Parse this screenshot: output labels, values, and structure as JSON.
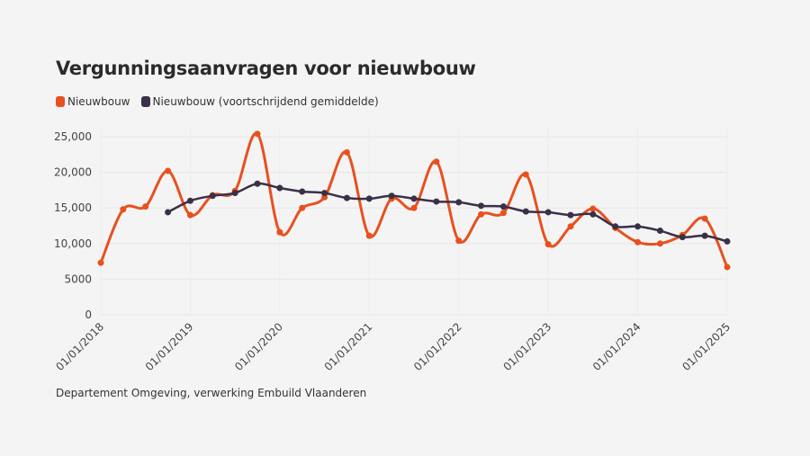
{
  "chart_data": {
    "type": "line",
    "title": "Vergunningsaanvragen voor nieuwbouw",
    "source": "Departement Omgeving, verwerking Embuild Vlaanderen",
    "legend_position": "top-left",
    "grid": true,
    "ylim": [
      0,
      25000
    ],
    "y_ticks": [
      "0",
      "5000",
      "10,000",
      "15,000",
      "20,000",
      "25,000"
    ],
    "y_tick_values": [
      0,
      5000,
      10000,
      15000,
      20000,
      25000
    ],
    "x_ticks": [
      "01/01/2018",
      "01/01/2019",
      "01/01/2020",
      "01/01/2021",
      "01/01/2022",
      "01/01/2023",
      "01/01/2024",
      "01/01/2025"
    ],
    "x": [
      "2018-01-01",
      "2018-04-01",
      "2018-07-01",
      "2018-10-01",
      "2019-01-01",
      "2019-04-01",
      "2019-07-01",
      "2019-10-01",
      "2020-01-01",
      "2020-04-01",
      "2020-07-01",
      "2020-10-01",
      "2021-01-01",
      "2021-04-01",
      "2021-07-01",
      "2021-10-01",
      "2022-01-01",
      "2022-04-01",
      "2022-07-01",
      "2022-10-01",
      "2023-01-01",
      "2023-04-01",
      "2023-07-01",
      "2023-10-01",
      "2024-01-01",
      "2024-04-01",
      "2024-07-01",
      "2024-10-01",
      "2025-01-01"
    ],
    "series": [
      {
        "name": "Nieuwbouw",
        "color": "#e8501e",
        "values": [
          7300,
          14800,
          15200,
          20200,
          14000,
          16800,
          17400,
          25400,
          11600,
          15000,
          16500,
          22800,
          11100,
          16300,
          15000,
          21500,
          10400,
          14100,
          14300,
          19700,
          9900,
          12400,
          14900,
          12200,
          10200,
          10000,
          11200,
          13500,
          6700
        ]
      },
      {
        "name": "Nieuwbouw (voortschrijdend gemiddelde)",
        "color": "#3a3048",
        "values": [
          null,
          null,
          null,
          14400,
          16000,
          16700,
          17100,
          18400,
          17800,
          17300,
          17100,
          16400,
          16300,
          16700,
          16300,
          15900,
          15800,
          15300,
          15200,
          14500,
          14400,
          14000,
          14100,
          12400,
          12400,
          11800,
          10900,
          11100,
          10300
        ]
      }
    ]
  }
}
